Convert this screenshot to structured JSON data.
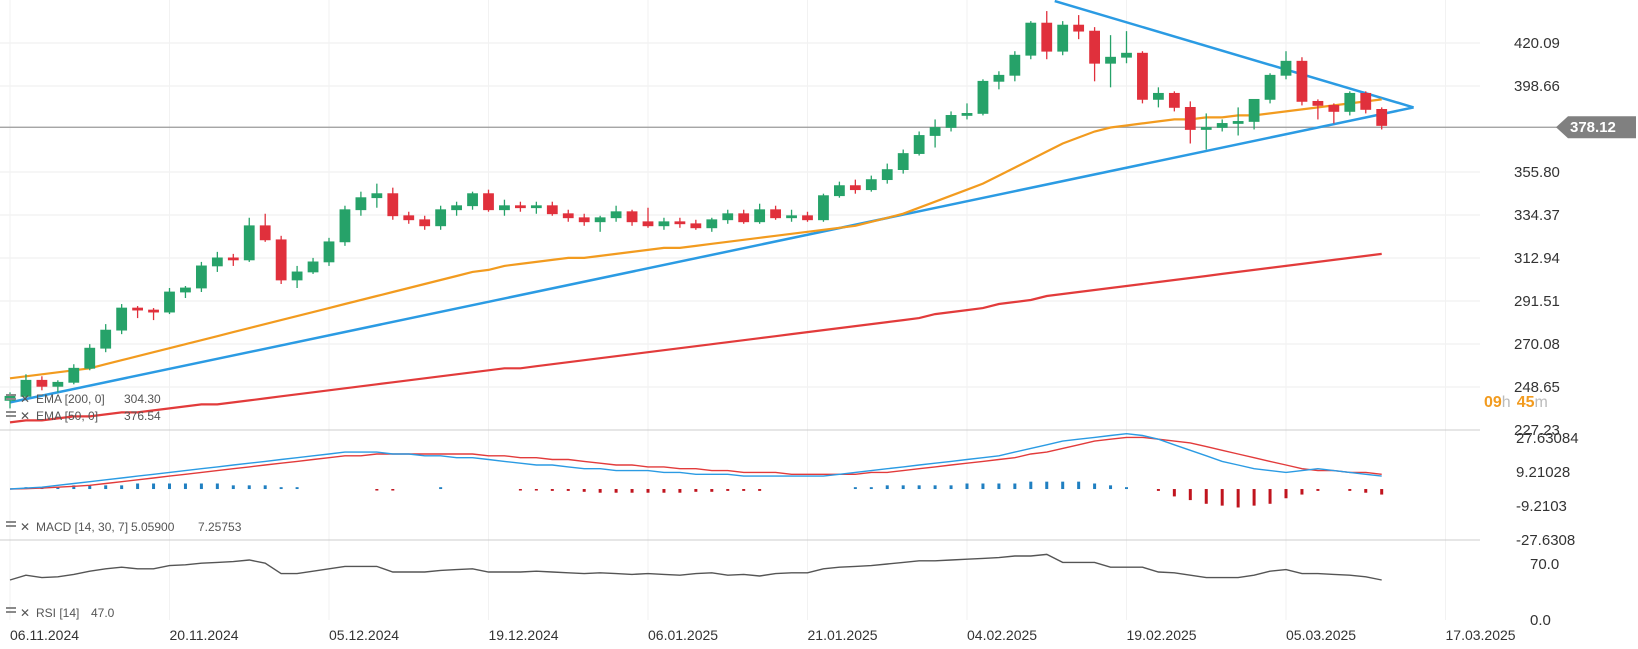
{
  "chart_data": {
    "type": "candlestick",
    "instrument_price_axis": [
      "420.09",
      "398.66",
      "378.12",
      "355.80",
      "334.37",
      "312.94",
      "291.51",
      "270.08",
      "248.65",
      "227.23"
    ],
    "price_axis_values": [
      420.09,
      398.66,
      355.8,
      334.37,
      312.94,
      291.51,
      270.08,
      248.65,
      227.23
    ],
    "price_axis_labels": [
      "420.09",
      "398.66",
      "355.80",
      "334.37",
      "312.94",
      "291.51",
      "270.08",
      "248.65",
      "227.23"
    ],
    "ylim": [
      227.23,
      441.52
    ],
    "current_price": 378.12,
    "current_price_label": "378.12",
    "date_labels": [
      "06.11.2024",
      "20.11.2024",
      "05.12.2024",
      "19.12.2024",
      "06.01.2025",
      "21.01.2025",
      "04.02.2025",
      "19.02.2025",
      "05.03.2025",
      "17.03.2025"
    ],
    "candles": [
      [
        242,
        246,
        238,
        244
      ],
      [
        244,
        255,
        243,
        252
      ],
      [
        252,
        254,
        247,
        249
      ],
      [
        249,
        252,
        246,
        251
      ],
      [
        251,
        260,
        250,
        258
      ],
      [
        258,
        270,
        257,
        268
      ],
      [
        268,
        280,
        266,
        277
      ],
      [
        277,
        290,
        275,
        288
      ],
      [
        288,
        289,
        283,
        287
      ],
      [
        287,
        288,
        282,
        286
      ],
      [
        286,
        298,
        285,
        296
      ],
      [
        296,
        299,
        293,
        298
      ],
      [
        298,
        311,
        296,
        309
      ],
      [
        309,
        316,
        306,
        313
      ],
      [
        313,
        315,
        309,
        312
      ],
      [
        312,
        333,
        311,
        329
      ],
      [
        329,
        335,
        321,
        322
      ],
      [
        322,
        324,
        300,
        302
      ],
      [
        302,
        309,
        298,
        306
      ],
      [
        306,
        313,
        305,
        311
      ],
      [
        311,
        323,
        309,
        321
      ],
      [
        321,
        339,
        319,
        337
      ],
      [
        337,
        346,
        334,
        343
      ],
      [
        343,
        350,
        338,
        345
      ],
      [
        345,
        348,
        332,
        334
      ],
      [
        334,
        336,
        330,
        332
      ],
      [
        332,
        334,
        327,
        329
      ],
      [
        329,
        339,
        327,
        337
      ],
      [
        337,
        341,
        334,
        339
      ],
      [
        339,
        346,
        337,
        345
      ],
      [
        345,
        347,
        336,
        337
      ],
      [
        337,
        342,
        334,
        339
      ],
      [
        339,
        341,
        336,
        338
      ],
      [
        338,
        341,
        335,
        339
      ],
      [
        339,
        341,
        334,
        335
      ],
      [
        335,
        337,
        331,
        333
      ],
      [
        333,
        335,
        329,
        331
      ],
      [
        331,
        334,
        326,
        333
      ],
      [
        333,
        339,
        331,
        336
      ],
      [
        336,
        337,
        329,
        331
      ],
      [
        331,
        338,
        328,
        329
      ],
      [
        329,
        333,
        327,
        331
      ],
      [
        331,
        333,
        328,
        330
      ],
      [
        330,
        332,
        327,
        328
      ],
      [
        328,
        333,
        326,
        332
      ],
      [
        332,
        337,
        330,
        335
      ],
      [
        335,
        337,
        330,
        331
      ],
      [
        331,
        340,
        330,
        337
      ],
      [
        337,
        339,
        332,
        333
      ],
      [
        333,
        337,
        331,
        334
      ],
      [
        334,
        336,
        331,
        332
      ],
      [
        332,
        345,
        331,
        344
      ],
      [
        344,
        351,
        343,
        349
      ],
      [
        349,
        352,
        345,
        347
      ],
      [
        347,
        354,
        346,
        352
      ],
      [
        352,
        360,
        350,
        357
      ],
      [
        357,
        367,
        355,
        365
      ],
      [
        365,
        376,
        364,
        374
      ],
      [
        374,
        382,
        368,
        378
      ],
      [
        378,
        386,
        376,
        384
      ],
      [
        384,
        390,
        382,
        385
      ],
      [
        385,
        402,
        384,
        401
      ],
      [
        401,
        406,
        397,
        404
      ],
      [
        404,
        416,
        401,
        414
      ],
      [
        414,
        431,
        412,
        430
      ],
      [
        430,
        436,
        412,
        416
      ],
      [
        416,
        431,
        414,
        429
      ],
      [
        429,
        434,
        422,
        426
      ],
      [
        426,
        428,
        401,
        410
      ],
      [
        410,
        424,
        398,
        413
      ],
      [
        413,
        426,
        410,
        415
      ],
      [
        415,
        416,
        390,
        392
      ],
      [
        392,
        398,
        388,
        395
      ],
      [
        395,
        396,
        386,
        388
      ],
      [
        388,
        391,
        370,
        377
      ],
      [
        377,
        385,
        367,
        378
      ],
      [
        378,
        382,
        376,
        380
      ],
      [
        380,
        388,
        374,
        381
      ],
      [
        381,
        392,
        377,
        392
      ],
      [
        392,
        405,
        390,
        404
      ],
      [
        404,
        416,
        402,
        411
      ],
      [
        411,
        413,
        389,
        391
      ],
      [
        391,
        392,
        382,
        389
      ],
      [
        389,
        390,
        380,
        386
      ],
      [
        386,
        396,
        384,
        395
      ],
      [
        395,
        396,
        385,
        387
      ],
      [
        387,
        388,
        377,
        379
      ]
    ],
    "ema50": {
      "name": "EMA [50, 0] 376.54",
      "label": "EMA [50, 0]",
      "value": "376.54",
      "color": "#f29b1f",
      "values": [
        253,
        254,
        255,
        256,
        257,
        258,
        260,
        262,
        264,
        266,
        268,
        270,
        272,
        274,
        276,
        278,
        280,
        282,
        284,
        286,
        288,
        290,
        292,
        294,
        296,
        298,
        300,
        302,
        304,
        306,
        307,
        309,
        310,
        311,
        312,
        313,
        313,
        314,
        315,
        316,
        317,
        318,
        318,
        319,
        320,
        321,
        322,
        323,
        324,
        325,
        326,
        327,
        328,
        329,
        331,
        333,
        335,
        338,
        341,
        344,
        347,
        350,
        354,
        358,
        362,
        366,
        370,
        373,
        376,
        378,
        379,
        380,
        381,
        382,
        382,
        383,
        383,
        384,
        384,
        385,
        386,
        387,
        388,
        389,
        390,
        391,
        392
      ]
    },
    "ema200": {
      "name": "EMA [200, 0] 304.30",
      "label": "EMA [200, 0]",
      "value": "304.30",
      "color": "#e23b3b",
      "values": [
        231,
        232,
        232,
        233,
        234,
        234,
        235,
        236,
        236,
        237,
        238,
        239,
        240,
        240,
        241,
        242,
        243,
        244,
        245,
        246,
        247,
        248,
        249,
        250,
        251,
        252,
        253,
        254,
        255,
        256,
        257,
        258,
        258,
        259,
        260,
        261,
        262,
        263,
        264,
        265,
        266,
        267,
        268,
        269,
        270,
        271,
        272,
        273,
        274,
        275,
        276,
        277,
        278,
        279,
        280,
        281,
        282,
        283,
        285,
        286,
        287,
        288,
        290,
        291,
        292,
        294,
        295,
        296,
        297,
        298,
        299,
        300,
        301,
        302,
        303,
        304,
        305,
        306,
        307,
        308,
        309,
        310,
        311,
        312,
        313,
        314,
        315
      ]
    },
    "trendlines": [
      {
        "name": "support",
        "color": "#2b9be3",
        "points": [
          [
            0,
            241
          ],
          [
            88,
            388
          ]
        ]
      },
      {
        "name": "resistance",
        "color": "#2b9be3",
        "points": [
          [
            65.5,
            441
          ],
          [
            88,
            388
          ]
        ]
      }
    ],
    "timer": {
      "hours": "09",
      "h": "h",
      "minutes": "45",
      "m": "m",
      "color": "#f29b1f"
    },
    "macd": {
      "name": "MACD [14, 30, 7]",
      "label": "MACD [14, 30, 7]",
      "value1": "5.05900",
      "value2": "7.25753",
      "axis_values": [
        27.63084,
        9.21028,
        -9.2103,
        -27.6308
      ],
      "axis_labels": [
        "27.63084",
        "9.21028",
        "-9.2103",
        "-27.6308"
      ],
      "ylim": [
        -27.6308,
        32
      ],
      "macd_color": "#2b9be3",
      "signal_color": "#e23b3b",
      "macd_line": [
        0,
        0.5,
        1,
        2,
        3,
        4,
        5,
        6,
        7,
        8,
        9,
        10,
        11,
        12,
        13,
        14,
        15,
        16,
        17,
        18,
        19,
        20,
        20,
        20,
        19,
        19,
        18,
        18,
        17,
        17,
        16,
        15,
        14,
        13,
        13,
        12,
        11,
        11,
        10,
        10,
        10,
        9,
        9,
        8,
        8,
        8,
        7,
        7,
        7,
        7,
        7,
        7,
        8,
        9,
        10,
        11,
        12,
        13,
        14,
        15,
        16,
        17,
        18,
        20,
        22,
        24,
        26,
        27,
        28,
        29,
        30,
        29,
        27,
        24,
        21,
        18,
        15,
        13,
        11,
        10,
        9,
        10,
        11,
        10,
        9,
        8,
        7
      ],
      "signal_line": [
        0,
        0.2,
        0.5,
        1,
        1.5,
        2,
        3,
        4,
        5,
        6,
        7,
        8,
        9,
        10,
        11,
        12,
        13,
        14,
        15,
        16,
        17,
        18,
        18,
        19,
        19,
        19,
        19,
        19,
        19,
        19,
        18,
        18,
        17,
        17,
        16,
        16,
        15,
        14,
        13,
        13,
        12,
        12,
        11,
        11,
        10,
        10,
        9,
        9,
        9,
        8,
        8,
        8,
        8,
        8,
        9,
        9,
        10,
        11,
        12,
        13,
        14,
        15,
        16,
        17,
        19,
        20,
        22,
        24,
        26,
        27,
        28,
        28,
        27,
        26,
        25,
        23,
        21,
        19,
        17,
        15,
        13,
        11,
        10,
        10,
        9,
        9,
        8
      ],
      "histogram": [
        0,
        1,
        1,
        1,
        2,
        2,
        2,
        2,
        3,
        3,
        3,
        3,
        3,
        3,
        2,
        2,
        2,
        1,
        1,
        0,
        0,
        0,
        0,
        -0.5,
        -0.5,
        0,
        0,
        1,
        0,
        0,
        0,
        0,
        -0.5,
        -0.5,
        -1,
        -1,
        -1.5,
        -2,
        -2,
        -2,
        -2,
        -2,
        -2,
        -1.5,
        -1.5,
        -1,
        -1,
        -1,
        0,
        0,
        0,
        0,
        0,
        1,
        1,
        2,
        2,
        2,
        2,
        2,
        3,
        3,
        3,
        3,
        4,
        4,
        4,
        4,
        3,
        2,
        1,
        0,
        -1,
        -4,
        -6,
        -8,
        -9,
        -10,
        -9,
        -8,
        -5,
        -3,
        -1,
        0,
        -1,
        -2,
        -3
      ]
    },
    "rsi": {
      "name": "RSI [14] 47.0",
      "label": "RSI [14]",
      "value": "47.0",
      "axis_values": [
        70,
        0
      ],
      "axis_labels": [
        "70.0",
        "0.0"
      ],
      "ylim": [
        0,
        100
      ],
      "color": "#555555",
      "values": [
        50,
        56,
        53,
        54,
        57,
        61,
        64,
        66,
        64,
        64,
        68,
        69,
        71,
        72,
        73,
        75,
        71,
        58,
        58,
        61,
        64,
        67,
        67,
        67,
        60,
        60,
        60,
        62,
        63,
        64,
        60,
        60,
        60,
        61,
        60,
        59,
        58,
        59,
        58,
        57,
        58,
        57,
        56,
        58,
        59,
        56,
        57,
        55,
        58,
        59,
        59,
        64,
        66,
        67,
        68,
        70,
        72,
        74,
        74,
        75,
        76,
        77,
        78,
        80,
        80,
        82,
        72,
        72,
        72,
        66,
        66,
        66,
        60,
        59,
        56,
        53,
        53,
        53,
        56,
        61,
        63,
        58,
        58,
        57,
        56,
        54,
        50
      ]
    },
    "legend_placement": "bottom-left"
  }
}
